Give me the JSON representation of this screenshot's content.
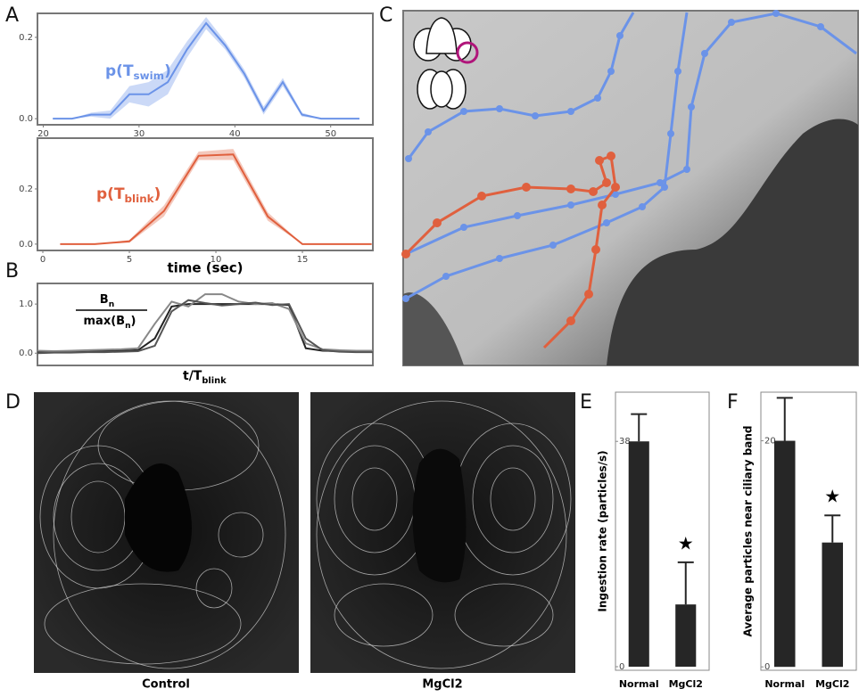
{
  "panel_labels": [
    "A",
    "B",
    "C",
    "D",
    "E",
    "F"
  ],
  "image_labels": [
    "Control",
    "MgCl2"
  ],
  "chart_data": [
    {
      "type": "line",
      "label": {
        "base": "p(T",
        "sub": "swim",
        "close": ")"
      },
      "x": [
        21,
        23,
        25,
        27,
        29,
        31,
        33,
        35,
        37,
        39,
        41,
        43,
        45,
        47,
        49,
        51,
        53
      ],
      "xlim": [
        19.4,
        54.4
      ],
      "xticks": [
        20,
        30,
        40,
        50
      ],
      "ylim": [
        -0.015,
        0.259
      ],
      "yticks": [
        {
          "value": 0,
          "label": "0.0"
        },
        0.2
      ],
      "series": [
        {
          "color": "#6b93e8",
          "values": [
            0,
            0,
            0.01,
            0.01,
            0.06,
            0.06,
            0.09,
            0.17,
            0.235,
            0.18,
            0.11,
            0.02,
            0.09,
            0.01,
            0,
            0,
            0
          ],
          "errors": [
            0,
            0,
            0.005,
            0.01,
            0.02,
            0.03,
            0.03,
            0.02,
            0.015,
            0.01,
            0.01,
            0.01,
            0.01,
            0.005,
            0,
            0,
            0
          ]
        }
      ]
    },
    {
      "type": "line",
      "label": {
        "base": "p(T",
        "sub": "blink",
        "close": ")"
      },
      "xlabel": "time (sec)",
      "x": [
        1,
        3,
        5,
        7,
        9,
        11,
        13,
        15,
        17,
        19
      ],
      "xlim": [
        -0.31,
        19.07
      ],
      "xticks": [
        0,
        5,
        10,
        15
      ],
      "ylim": [
        -0.023,
        0.384
      ],
      "yticks": [
        {
          "value": 0,
          "label": "0.0"
        },
        0.2
      ],
      "series": [
        {
          "color": "#e0603e",
          "values": [
            0,
            0,
            0.01,
            0.12,
            0.32,
            0.325,
            0.1,
            0,
            0,
            0
          ],
          "errors": [
            0,
            0,
            0.005,
            0.02,
            0.015,
            0.02,
            0.015,
            0,
            0,
            0
          ]
        }
      ]
    },
    {
      "type": "line",
      "xlabel": {
        "base": "t/T",
        "sub": "blink"
      },
      "fraction": {
        "num_base": "B",
        "num_sub": "n",
        "den_base": "max(B",
        "den_sub": "n",
        "den_close": ")"
      },
      "x": [
        0,
        0.05,
        0.1,
        0.15,
        0.2,
        0.25,
        0.3,
        0.35,
        0.4,
        0.45,
        0.5,
        0.55,
        0.6,
        0.65,
        0.7,
        0.75,
        0.8,
        0.85,
        0.9,
        0.95,
        1
      ],
      "xlim": [
        0,
        1
      ],
      "ylim": [
        -0.25,
        1.42
      ],
      "yticks": [
        {
          "value": 0,
          "label": "0.0"
        },
        {
          "value": 1,
          "label": "1.0"
        }
      ],
      "series": [
        {
          "color": "#222222",
          "values": [
            0.02,
            0.02,
            0.03,
            0.03,
            0.04,
            0.05,
            0.06,
            0.3,
            0.95,
            1,
            1,
            1,
            1,
            1,
            1,
            0.98,
            0.1,
            0.05,
            0.04,
            0.04,
            0.04
          ]
        },
        {
          "color": "#888888",
          "values": [
            0.05,
            0.04,
            0.05,
            0.06,
            0.07,
            0.08,
            0.1,
            0.6,
            1.05,
            0.95,
            1.2,
            1.2,
            1.05,
            1,
            1.02,
            0.9,
            0.2,
            0.08,
            0.06,
            0.05,
            0.05
          ]
        },
        {
          "color": "#555555",
          "values": [
            0,
            0.01,
            0.01,
            0.02,
            0.02,
            0.03,
            0.04,
            0.15,
            0.85,
            1.08,
            1.02,
            0.97,
            1,
            1.03,
            0.98,
            1,
            0.3,
            0.06,
            0.03,
            0.02,
            0.02
          ]
        }
      ]
    },
    {
      "type": "bar",
      "ylabel": "Ingestion rate  (particles/s)",
      "categories": [
        "Normal",
        "MgCl2"
      ],
      "values": [
        38,
        10.5
      ],
      "errors": [
        4.6,
        7.1
      ],
      "color": "#262626",
      "ylim": [
        -0.6,
        46.3
      ],
      "yticks": [
        0,
        38
      ],
      "annotation": "★"
    },
    {
      "type": "bar",
      "ylabel": "Average particles near ciliary band",
      "categories": [
        "Normal",
        "MgCl2"
      ],
      "values": [
        20,
        11
      ],
      "errors": [
        3.8,
        2.4
      ],
      "color": "#262626",
      "ylim": [
        -0.3,
        24.3
      ],
      "yticks": [
        0,
        20
      ],
      "annotation": "★"
    }
  ]
}
